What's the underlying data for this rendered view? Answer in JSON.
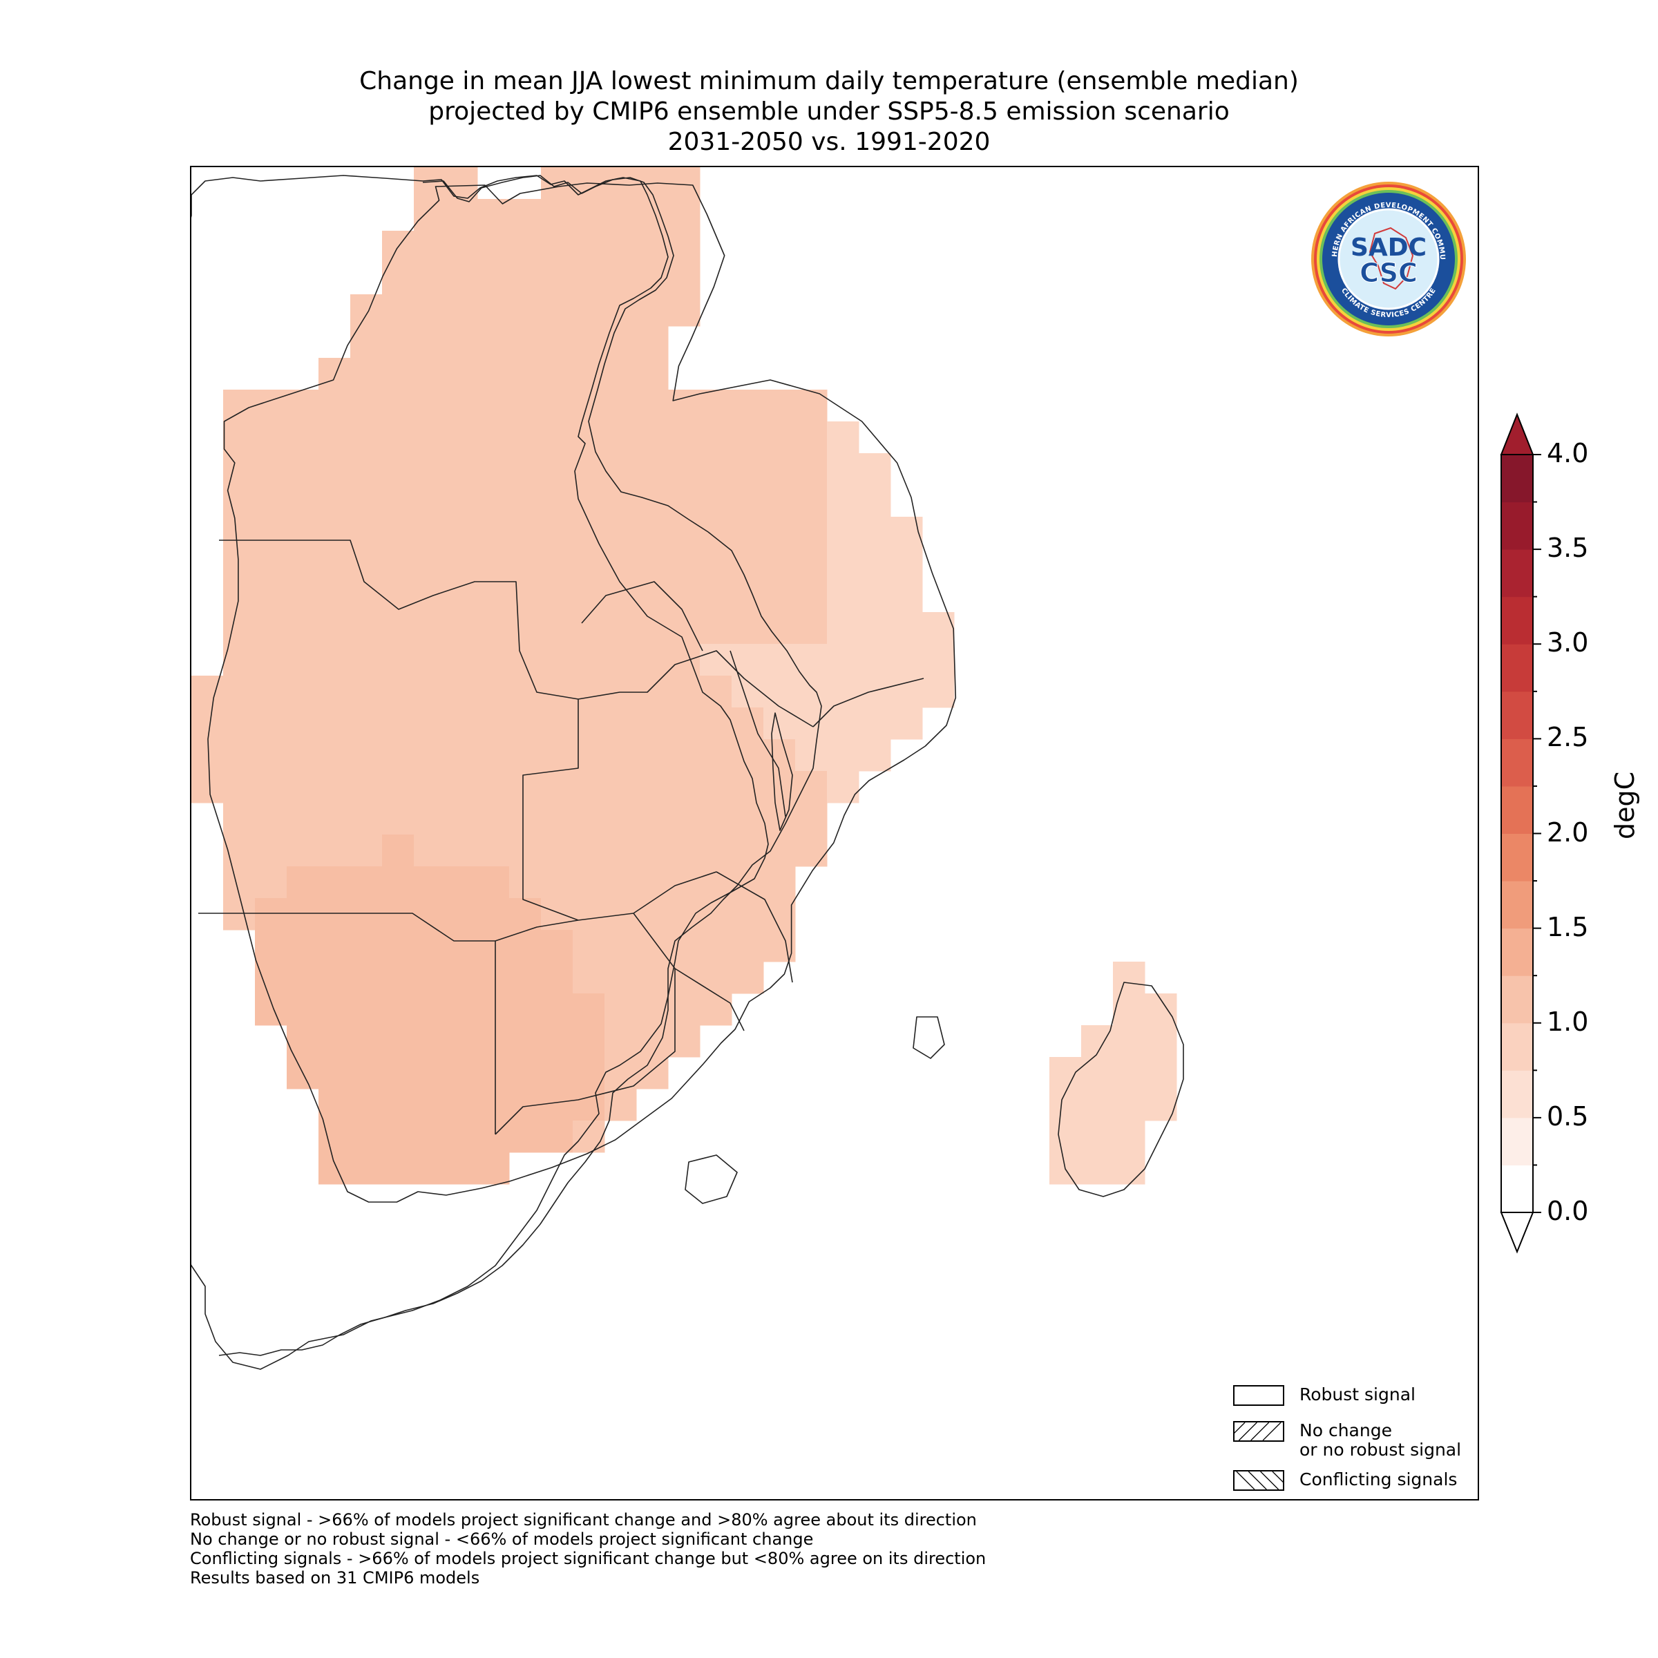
{
  "title": {
    "line1": "Change in mean JJA lowest minimum daily temperature (ensemble median)",
    "line2": "projected by CMIP6 ensemble under SSP5-8.5 emission scenario",
    "line3": "2031-2050 vs. 1991-2020"
  },
  "logo": {
    "ring_text_top": "SOUTHERN AFRICAN DEVELOPMENT COMMUNITY",
    "ring_text_bottom": "CLIMATE SERVICES CENTRE",
    "mark_top": "SADC",
    "mark_bottom": "CSC"
  },
  "colorbar": {
    "title": "degC",
    "ticks": [
      "0.0",
      "0.5",
      "1.0",
      "1.5",
      "2.0",
      "2.5",
      "3.0",
      "3.5",
      "4.0"
    ],
    "colors": [
      "#ffffff",
      "#fdeee8",
      "#fce0d3",
      "#fad2bf",
      "#f7c3ab",
      "#f4b093",
      "#f09c7b",
      "#eb8766",
      "#e47256",
      "#dc5e4c",
      "#d24b42",
      "#c73b39",
      "#ba2d32",
      "#aa2330",
      "#981b2c",
      "#86172b"
    ],
    "min_color": "#ffffff",
    "max_color": "#a11e2d"
  },
  "legend": {
    "robust": "Robust signal",
    "no_change": "No change\nor no robust signal",
    "conflicting": "Conflicting signals"
  },
  "notes": {
    "line1": "Robust signal - >66% of models project significant change and >80% agree about its direction",
    "line2": "No change or no robust signal - <66% of models project significant change",
    "line3": "Conflicting signals - >66% of models project significant change but <80% agree on its direction",
    "line4": "Results based on 31 CMIP6 models"
  }
}
